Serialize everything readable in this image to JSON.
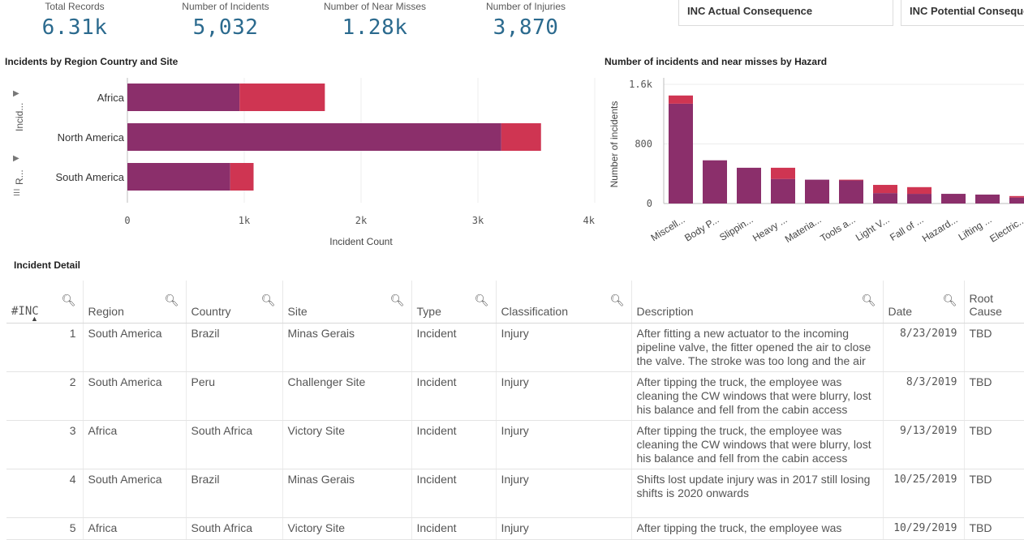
{
  "kpis": [
    {
      "label": "Total Records",
      "value": "6.31k"
    },
    {
      "label": "Number of Incidents",
      "value": "5,032"
    },
    {
      "label": "Number of Near Misses",
      "value": "1.28k"
    },
    {
      "label": "Number of Injuries",
      "value": "3,870"
    }
  ],
  "filters": [
    "INC Actual Consequence",
    "INC Potential Consequence"
  ],
  "region_chart": {
    "title": "Incidents by Region Country and Site",
    "side_labels": [
      "Incid...",
      "R..."
    ],
    "xlabel": "Incident Count",
    "ticks": [
      "0",
      "1k",
      "2k",
      "3k",
      "4k"
    ]
  },
  "hazard_chart": {
    "title": "Number of incidents and near misses by Hazard",
    "ylabel": "Number of incidents",
    "ticks": [
      "0",
      "800",
      "1.6k"
    ]
  },
  "chart_data": [
    {
      "type": "bar",
      "orientation": "horizontal",
      "stacked": true,
      "title": "Incidents by Region Country and Site",
      "categories": [
        "Africa",
        "North America",
        "South America"
      ],
      "series": [
        {
          "name": "Incident",
          "values": [
            960,
            3200,
            880
          ]
        },
        {
          "name": "Near Miss",
          "values": [
            730,
            340,
            200
          ]
        }
      ],
      "xlabel": "Incident Count",
      "xlim": [
        0,
        4000
      ]
    },
    {
      "type": "bar",
      "stacked": true,
      "title": "Number of incidents and near misses by Hazard",
      "categories": [
        "Miscell...",
        "Body P...",
        "Slippin...",
        "Heavy ...",
        "Materia...",
        "Tools a...",
        "Light V...",
        "Fall of ...",
        "Hazard...",
        "Lifting ...",
        "Electric..."
      ],
      "series": [
        {
          "name": "Incident",
          "values": [
            1340,
            580,
            480,
            330,
            320,
            310,
            140,
            130,
            130,
            120,
            80
          ]
        },
        {
          "name": "Near Miss",
          "values": [
            110,
            0,
            0,
            150,
            0,
            10,
            110,
            90,
            0,
            0,
            20
          ]
        }
      ],
      "ylabel": "Number of incidents",
      "ylim": [
        0,
        1600
      ]
    }
  ],
  "table": {
    "title": "Incident Detail",
    "headers": [
      "#INC",
      "Region",
      "Country",
      "Site",
      "Type",
      "Classification",
      "Description",
      "Date",
      "Root Cause"
    ],
    "rows": [
      [
        "1",
        "South America",
        "Brazil",
        "Minas Gerais",
        "Incident",
        "Injury",
        "After fitting a new actuator to the incoming pipeline valve, the fitter opened the air to close the valve. The stroke was too long and the air",
        "8/23/2019",
        "TBD"
      ],
      [
        "2",
        "South America",
        "Peru",
        "Challenger Site",
        "Incident",
        "Injury",
        "After tipping the truck, the employee was cleaning the CW windows that were blurry, lost his balance and fell from the cabin access",
        "8/3/2019",
        "TBD"
      ],
      [
        "3",
        "Africa",
        "South Africa",
        "Victory Site",
        "Incident",
        "Injury",
        "After tipping the truck, the employee was cleaning the CW windows that were blurry, lost his balance and fell from the cabin access",
        "9/13/2019",
        "TBD"
      ],
      [
        "4",
        "South America",
        "Brazil",
        "Minas Gerais",
        "Incident",
        "Injury",
        "Shifts lost update injury was in 2017 still losing shifts is 2020 onwards",
        "10/25/2019",
        "TBD"
      ],
      [
        "5",
        "Africa",
        "South Africa",
        "Victory Site",
        "Incident",
        "Injury",
        "After tipping the truck, the employee was",
        "10/29/2019",
        "TBD"
      ]
    ]
  },
  "colors": {
    "incident": "#8b2f6b",
    "near_miss": "#cf3552",
    "kpi": "#2b6a8e"
  }
}
